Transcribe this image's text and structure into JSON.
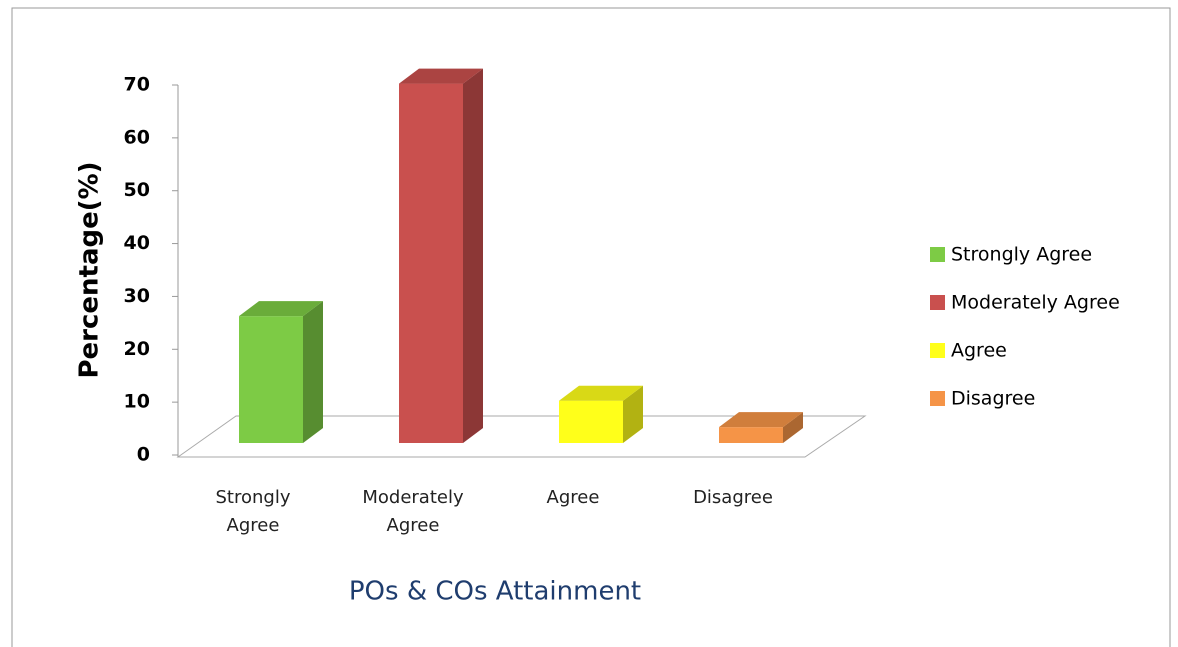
{
  "chart_data": {
    "type": "bar3d",
    "categories": [
      "Strongly Agree",
      "Moderately Agree",
      "Agree",
      "Disagree"
    ],
    "values": [
      24,
      68,
      8,
      3
    ],
    "colors": [
      "#7dcb45",
      "#c9504e",
      "#ffff1a",
      "#f59447"
    ],
    "ylim": [
      0,
      70
    ],
    "yticks": [
      0,
      10,
      20,
      30,
      40,
      50,
      60,
      70
    ],
    "y_label": "Percentage(%)",
    "x_label": "POs & COs  Attainment",
    "legend": "right"
  }
}
